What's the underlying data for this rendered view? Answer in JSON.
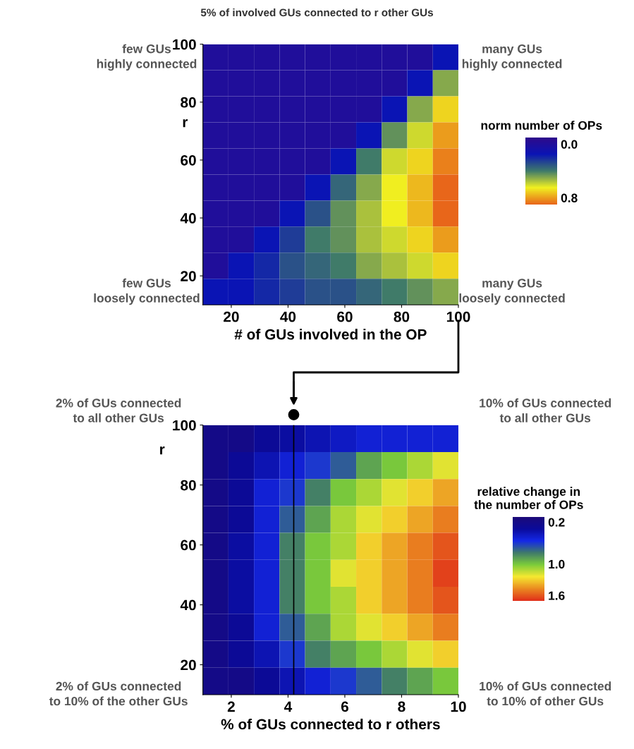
{
  "chart_data": [
    {
      "type": "heatmap",
      "title": "5% of involved GUs connected to r other GUs",
      "xlabel": "# of GUs involved in the OP",
      "ylabel": "r",
      "clabel": "norm number of OPs",
      "x": [
        14.5,
        23.5,
        32.5,
        41.5,
        50.5,
        59.5,
        68.5,
        77.5,
        86.5,
        95.5
      ],
      "y": [
        95.5,
        86.5,
        77.5,
        68.5,
        59.5,
        50.5,
        41.5,
        32.5,
        23.5,
        14.5
      ],
      "cells": [
        [
          0,
          0,
          0,
          0,
          0,
          0,
          0,
          0,
          0,
          0.15
        ],
        [
          0,
          0,
          0,
          0,
          0,
          0,
          0,
          0,
          0.15,
          0.5
        ],
        [
          0,
          0,
          0,
          0,
          0,
          0,
          0,
          0.15,
          0.5,
          0.7
        ],
        [
          0,
          0,
          0,
          0,
          0,
          0,
          0.15,
          0.45,
          0.6,
          0.8
        ],
        [
          0,
          0,
          0,
          0,
          0,
          0.15,
          0.4,
          0.6,
          0.7,
          0.85
        ],
        [
          0,
          0,
          0,
          0,
          0.15,
          0.35,
          0.5,
          0.65,
          0.75,
          0.9
        ],
        [
          0,
          0,
          0,
          0.15,
          0.3,
          0.45,
          0.55,
          0.65,
          0.75,
          0.9
        ],
        [
          0,
          0,
          0.15,
          0.25,
          0.4,
          0.45,
          0.55,
          0.6,
          0.7,
          0.8
        ],
        [
          0,
          0.15,
          0.2,
          0.3,
          0.35,
          0.4,
          0.5,
          0.55,
          0.6,
          0.7
        ],
        [
          0.15,
          0.15,
          0.2,
          0.25,
          0.3,
          0.3,
          0.35,
          0.4,
          0.45,
          0.5
        ]
      ],
      "colors": [
        "#2e0a8a",
        "#0a14b4",
        "#3f7a6a",
        "#f0f020",
        "#e8661a"
      ],
      "clim": [
        -0.1,
        0.9
      ],
      "cticks": [
        {
          "value": 0.0,
          "label": "0.0"
        },
        {
          "value": 0.8,
          "label": "0.8"
        }
      ],
      "xlim": [
        10,
        100
      ],
      "ylim": [
        10,
        100
      ],
      "xticks": [
        20,
        40,
        60,
        80,
        100
      ],
      "yticks": [
        20,
        40,
        60,
        80,
        100
      ],
      "annotations": [
        "few GUs\nhighly connected",
        "many GUs\nhighly connected",
        "few GUs\nloosely connected",
        "many GUs\nloosely connected"
      ]
    },
    {
      "type": "heatmap",
      "xlabel": "% of GUs connected to r others",
      "ylabel": "r",
      "clabel": "relative change in\nthe number of OPs",
      "x": [
        1.45,
        2.35,
        3.25,
        4.15,
        5.05,
        5.95,
        6.85,
        7.75,
        8.65,
        9.55
      ],
      "y": [
        95.5,
        86.5,
        77.5,
        68.5,
        59.5,
        50.5,
        41.5,
        32.5,
        23.5,
        14.5
      ],
      "cells": [
        [
          0.2,
          0.2,
          0.3,
          0.35,
          0.4,
          0.45,
          0.5,
          0.5,
          0.5,
          0.5
        ],
        [
          0.2,
          0.3,
          0.4,
          0.5,
          0.6,
          0.7,
          0.9,
          1.0,
          1.1,
          1.2
        ],
        [
          0.2,
          0.3,
          0.5,
          0.6,
          0.8,
          1.0,
          1.1,
          1.2,
          1.3,
          1.4
        ],
        [
          0.2,
          0.3,
          0.5,
          0.7,
          0.9,
          1.1,
          1.2,
          1.3,
          1.4,
          1.5
        ],
        [
          0.2,
          0.35,
          0.5,
          0.8,
          1.0,
          1.1,
          1.3,
          1.4,
          1.5,
          1.6
        ],
        [
          0.2,
          0.35,
          0.5,
          0.8,
          1.0,
          1.2,
          1.3,
          1.4,
          1.5,
          1.65
        ],
        [
          0.2,
          0.35,
          0.5,
          0.8,
          1.0,
          1.1,
          1.3,
          1.4,
          1.5,
          1.6
        ],
        [
          0.2,
          0.3,
          0.5,
          0.7,
          0.9,
          1.1,
          1.2,
          1.3,
          1.4,
          1.5
        ],
        [
          0.2,
          0.3,
          0.4,
          0.6,
          0.8,
          0.9,
          1.0,
          1.1,
          1.2,
          1.3
        ],
        [
          0.2,
          0.2,
          0.3,
          0.4,
          0.5,
          0.6,
          0.7,
          0.8,
          0.9,
          1.0
        ]
      ],
      "colors": [
        "#1c0a78",
        "#0a0a9a",
        "#1428e6",
        "#3f7a6a",
        "#7ccc3a",
        "#f5e830",
        "#ea8a20",
        "#e0301a"
      ],
      "clim": [
        0.1,
        1.7
      ],
      "cticks": [
        {
          "value": 0.2,
          "label": "0.2"
        },
        {
          "value": 1.0,
          "label": "1.0"
        },
        {
          "value": 1.6,
          "label": "1.6"
        }
      ],
      "xlim": [
        1,
        10
      ],
      "ylim": [
        10,
        100
      ],
      "xticks": [
        2,
        4,
        6,
        8,
        10
      ],
      "yticks": [
        20,
        40,
        60,
        80,
        100
      ],
      "ref_lines": [
        {
          "axis": "x",
          "value": 4.2,
          "color": "#000000"
        }
      ],
      "annotations": [
        "2% of GUs connected\nto all other GUs",
        "10% of GUs connected\nto all other GUs",
        "2% of GUs connected\nto 10% of the other GUs",
        "10% of GUs connected\nto 10% of other GUs"
      ]
    }
  ]
}
